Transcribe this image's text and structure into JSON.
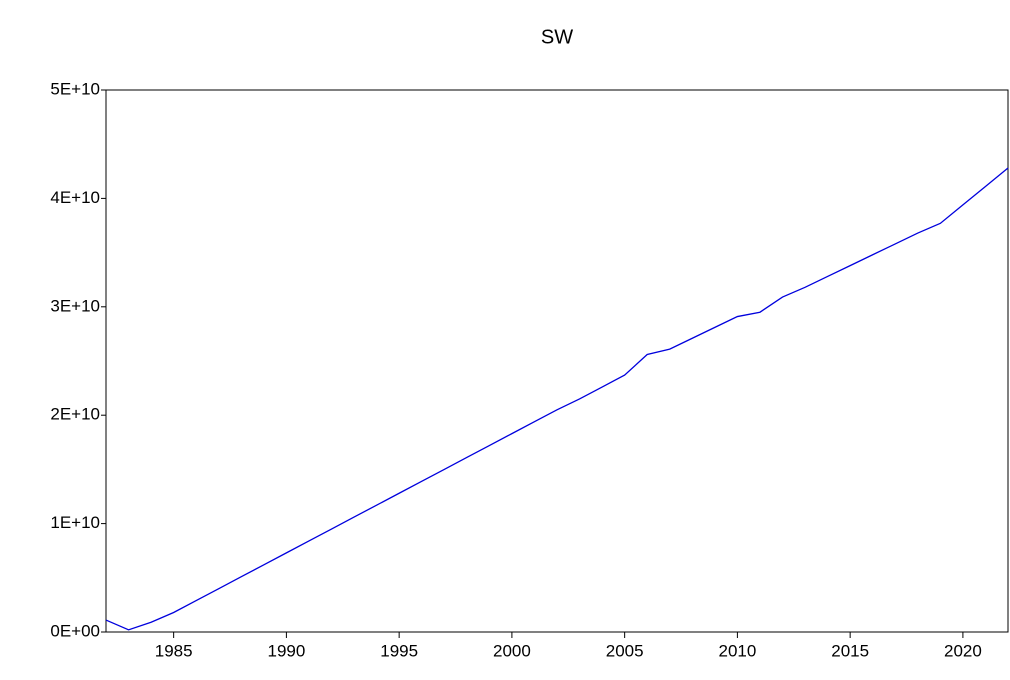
{
  "chart_data": {
    "type": "line",
    "title": "SW",
    "x": [
      1982,
      1983,
      1984,
      1985,
      1986,
      1987,
      1988,
      1989,
      1990,
      1991,
      1992,
      1993,
      1994,
      1995,
      1996,
      1997,
      1998,
      1999,
      2000,
      2001,
      2002,
      2003,
      2004,
      2005,
      2006,
      2007,
      2008,
      2009,
      2010,
      2011,
      2012,
      2013,
      2014,
      2015,
      2016,
      2017,
      2018,
      2019,
      2020,
      2021,
      2022
    ],
    "series": [
      {
        "name": "SW",
        "color": "#0000dd",
        "values": [
          1100000000,
          200000000,
          900000000,
          1800000000,
          2900000000,
          4000000000,
          5100000000,
          6200000000,
          7300000000,
          8400000000,
          9500000000,
          10600000000,
          11700000000,
          12800000000,
          13900000000,
          15000000000,
          16100000000,
          17200000000,
          18300000000,
          19400000000,
          20500000000,
          21500000000,
          22600000000,
          23700000000,
          25600000000,
          26100000000,
          27100000000,
          28100000000,
          29100000000,
          29500000000,
          30900000000,
          31800000000,
          32800000000,
          33800000000,
          34800000000,
          35800000000,
          36800000000,
          37700000000,
          39400000000,
          41100000000,
          42800000000
        ]
      }
    ],
    "xlim": [
      1982,
      2022
    ],
    "xticks": [
      1985,
      1990,
      1995,
      2000,
      2005,
      2010,
      2015,
      2020
    ],
    "ylim": [
      0,
      50000000000
    ],
    "yticks": [
      {
        "value": 0,
        "label": "0E+00"
      },
      {
        "value": 10000000000,
        "label": "1E+10"
      },
      {
        "value": 20000000000,
        "label": "2E+10"
      },
      {
        "value": 30000000000,
        "label": "3E+10"
      },
      {
        "value": 40000000000,
        "label": "4E+10"
      },
      {
        "value": 50000000000,
        "label": "5E+10"
      }
    ],
    "grid": false
  }
}
